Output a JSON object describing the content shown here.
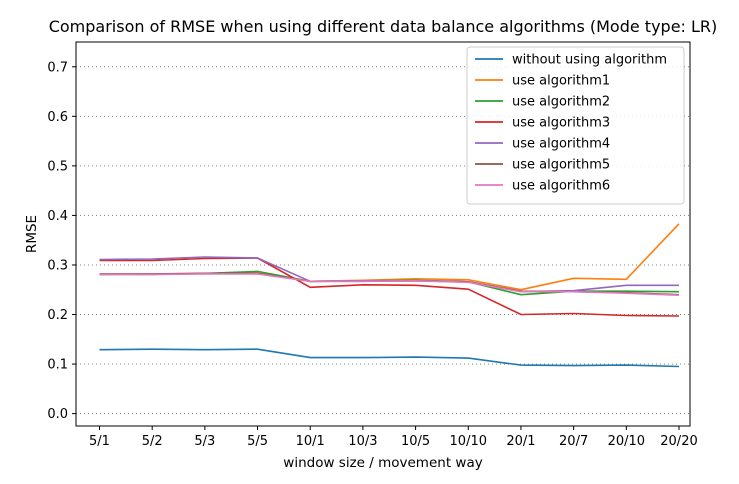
{
  "chart_data": {
    "type": "line",
    "title": "Comparison of RMSE when using different data balance algorithms (Mode type: LR)",
    "xlabel": "window size / movement way",
    "ylabel": "RMSE",
    "categories": [
      "5/1",
      "5/2",
      "5/3",
      "5/5",
      "10/1",
      "10/3",
      "10/5",
      "10/10",
      "20/1",
      "20/7",
      "20/10",
      "20/20"
    ],
    "ylim": [
      -0.025,
      0.75
    ],
    "yticks": [
      0.0,
      0.1,
      0.2,
      0.3,
      0.4,
      0.5,
      0.6,
      0.7
    ],
    "ytick_labels": [
      "0.0",
      "0.1",
      "0.2",
      "0.3",
      "0.4",
      "0.5",
      "0.6",
      "0.7"
    ],
    "grid": {
      "axis": "y",
      "style": "dotted"
    },
    "legend_position": "top-right",
    "series": [
      {
        "name": "without using algorithm",
        "color": "#1f77b4",
        "values": [
          0.129,
          0.13,
          0.129,
          0.13,
          0.113,
          0.113,
          0.114,
          0.112,
          0.098,
          0.097,
          0.098,
          0.095
        ]
      },
      {
        "name": "use algorithm1",
        "color": "#ff7f0e",
        "values": [
          0.281,
          0.282,
          0.283,
          0.284,
          0.267,
          0.269,
          0.272,
          0.27,
          0.25,
          0.273,
          0.271,
          0.383
        ]
      },
      {
        "name": "use algorithm2",
        "color": "#2ca02c",
        "values": [
          0.281,
          0.281,
          0.283,
          0.287,
          0.267,
          0.268,
          0.269,
          0.266,
          0.24,
          0.247,
          0.247,
          0.246
        ]
      },
      {
        "name": "use algorithm3",
        "color": "#d62728",
        "values": [
          0.309,
          0.309,
          0.313,
          0.314,
          0.255,
          0.26,
          0.259,
          0.251,
          0.2,
          0.202,
          0.198,
          0.197
        ]
      },
      {
        "name": "use algorithm4",
        "color": "#9467bd",
        "values": [
          0.311,
          0.312,
          0.316,
          0.314,
          0.267,
          0.268,
          0.268,
          0.266,
          0.246,
          0.248,
          0.259,
          0.259
        ]
      },
      {
        "name": "use algorithm5",
        "color": "#8c564b",
        "values": [
          0.282,
          0.282,
          0.283,
          0.283,
          0.267,
          0.267,
          0.268,
          0.266,
          0.247,
          0.246,
          0.244,
          0.24
        ]
      },
      {
        "name": "use algorithm6",
        "color": "#e377c2",
        "values": [
          0.281,
          0.281,
          0.282,
          0.282,
          0.267,
          0.267,
          0.268,
          0.265,
          0.246,
          0.246,
          0.243,
          0.239
        ]
      }
    ]
  }
}
